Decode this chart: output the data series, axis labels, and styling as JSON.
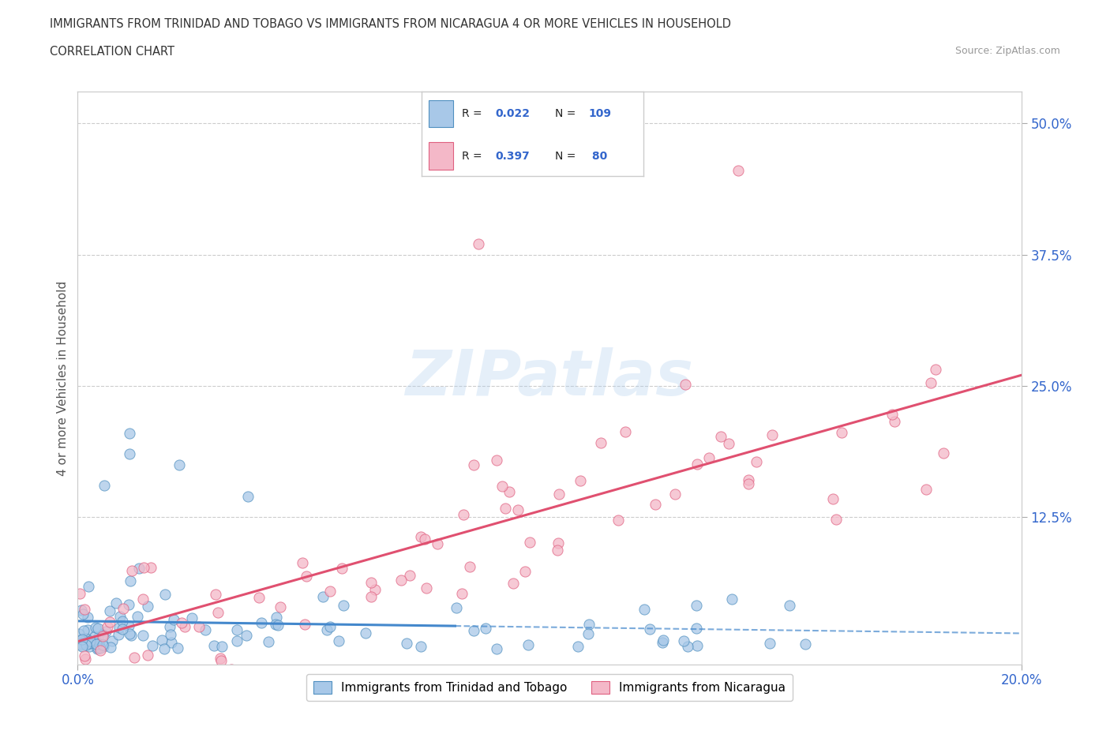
{
  "title_line1": "IMMIGRANTS FROM TRINIDAD AND TOBAGO VS IMMIGRANTS FROM NICARAGUA 4 OR MORE VEHICLES IN HOUSEHOLD",
  "title_line2": "CORRELATION CHART",
  "source_text": "Source: ZipAtlas.com",
  "ylabel": "4 or more Vehicles in Household",
  "xlim": [
    0.0,
    0.2
  ],
  "ylim": [
    -0.015,
    0.53
  ],
  "blue_color": "#a8c8e8",
  "pink_color": "#f4b8c8",
  "blue_edge": "#5090c0",
  "pink_edge": "#e06080",
  "blue_line_color": "#4488cc",
  "pink_line_color": "#e05070",
  "blue_R": 0.022,
  "blue_N": 109,
  "pink_R": 0.397,
  "pink_N": 80,
  "legend_label_blue": "Immigrants from Trinidad and Tobago",
  "legend_label_pink": "Immigrants from Nicaragua",
  "watermark": "ZIPatlas",
  "background_color": "#ffffff",
  "grid_color": "#cccccc",
  "axis_label_color": "#3366cc",
  "title_color": "#333333",
  "source_color": "#999999",
  "blue_seed": 42,
  "pink_seed": 7,
  "ytick_vals": [
    0.125,
    0.25,
    0.375,
    0.5
  ],
  "ytick_labels": [
    "12.5%",
    "25.0%",
    "37.5%",
    "50.0%"
  ],
  "xtick_vals": [
    0.0,
    0.2
  ],
  "xtick_labels": [
    "0.0%",
    "20.0%"
  ]
}
